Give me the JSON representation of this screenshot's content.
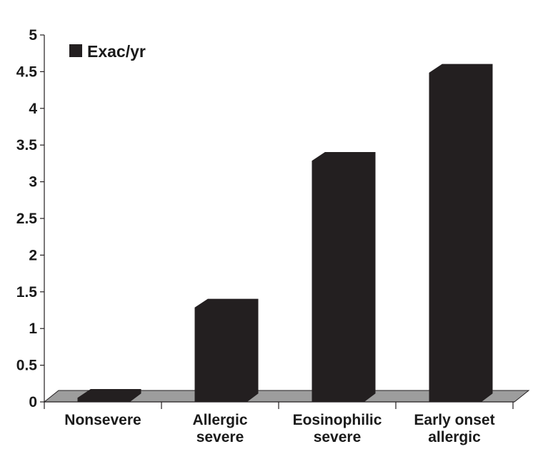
{
  "chart_data": {
    "type": "bar",
    "title": "",
    "xlabel": "",
    "ylabel": "",
    "categories": [
      [
        "Nonsevere"
      ],
      [
        "Allergic",
        "severe"
      ],
      [
        "Eosinophilic",
        "severe"
      ],
      [
        "Early onset",
        "allergic"
      ]
    ],
    "series": [
      {
        "name": "Exac/yr",
        "values": [
          0.17,
          1.4,
          3.4,
          4.6
        ]
      }
    ],
    "ylim": [
      0,
      5
    ],
    "yticks": [
      "0",
      "0.5",
      "1",
      "1.5",
      "2",
      "2.5",
      "3",
      "3.5",
      "4",
      "4.5",
      "5"
    ],
    "grid": false,
    "legend_position": "top-left",
    "colors": {
      "bar": "#231f20",
      "floor": "#9d9d9d",
      "axis": "#231f20"
    }
  }
}
